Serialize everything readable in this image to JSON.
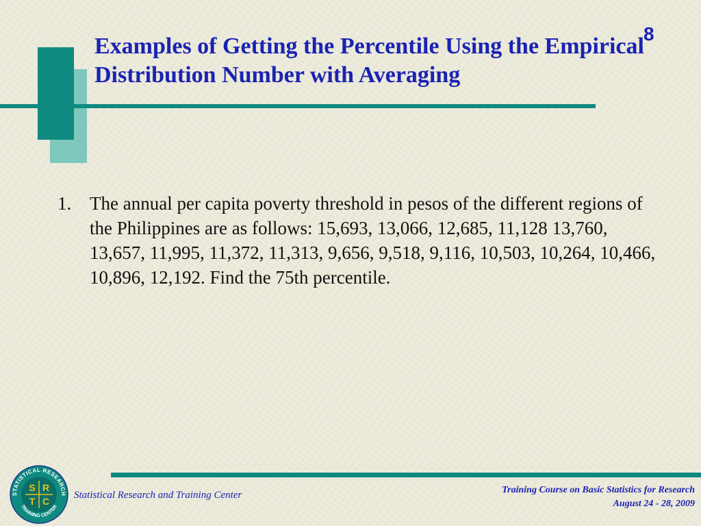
{
  "slide": {
    "title": "Examples of Getting the Percentile Using the Empirical Distribution Number with Averaging",
    "number": "8"
  },
  "content": {
    "items": [
      {
        "marker": "1.",
        "text": "The annual per capita poverty threshold in pesos of the different regions of the Philippines are as follows:  15,693,  13,066,  12,685,  11,128  13,760,  13,657,  11,995,  11,372,  11,313,  9,656,  9,518,  9,116,  10,503,  10,264,  10,466,  10,896,  12,192.   Find the 75th percentile."
      }
    ]
  },
  "footer": {
    "organization": "Statistical Research and Training Center",
    "course": "Training Course on Basic Statistics for Research",
    "dates": "August  24 - 28, 2009"
  },
  "logo": {
    "ring_top_text": "STATISTICAL RESEARCH",
    "ring_bottom_text": "TRAINING CENTER",
    "letters": [
      "S",
      "R",
      "T",
      "C"
    ]
  },
  "colors": {
    "accent_teal": "#0f8a80",
    "accent_light_teal": "#7ec8bd",
    "title_blue": "#1a23b3",
    "logo_yellow": "#e8c21a",
    "background": "#ebe9d9"
  }
}
